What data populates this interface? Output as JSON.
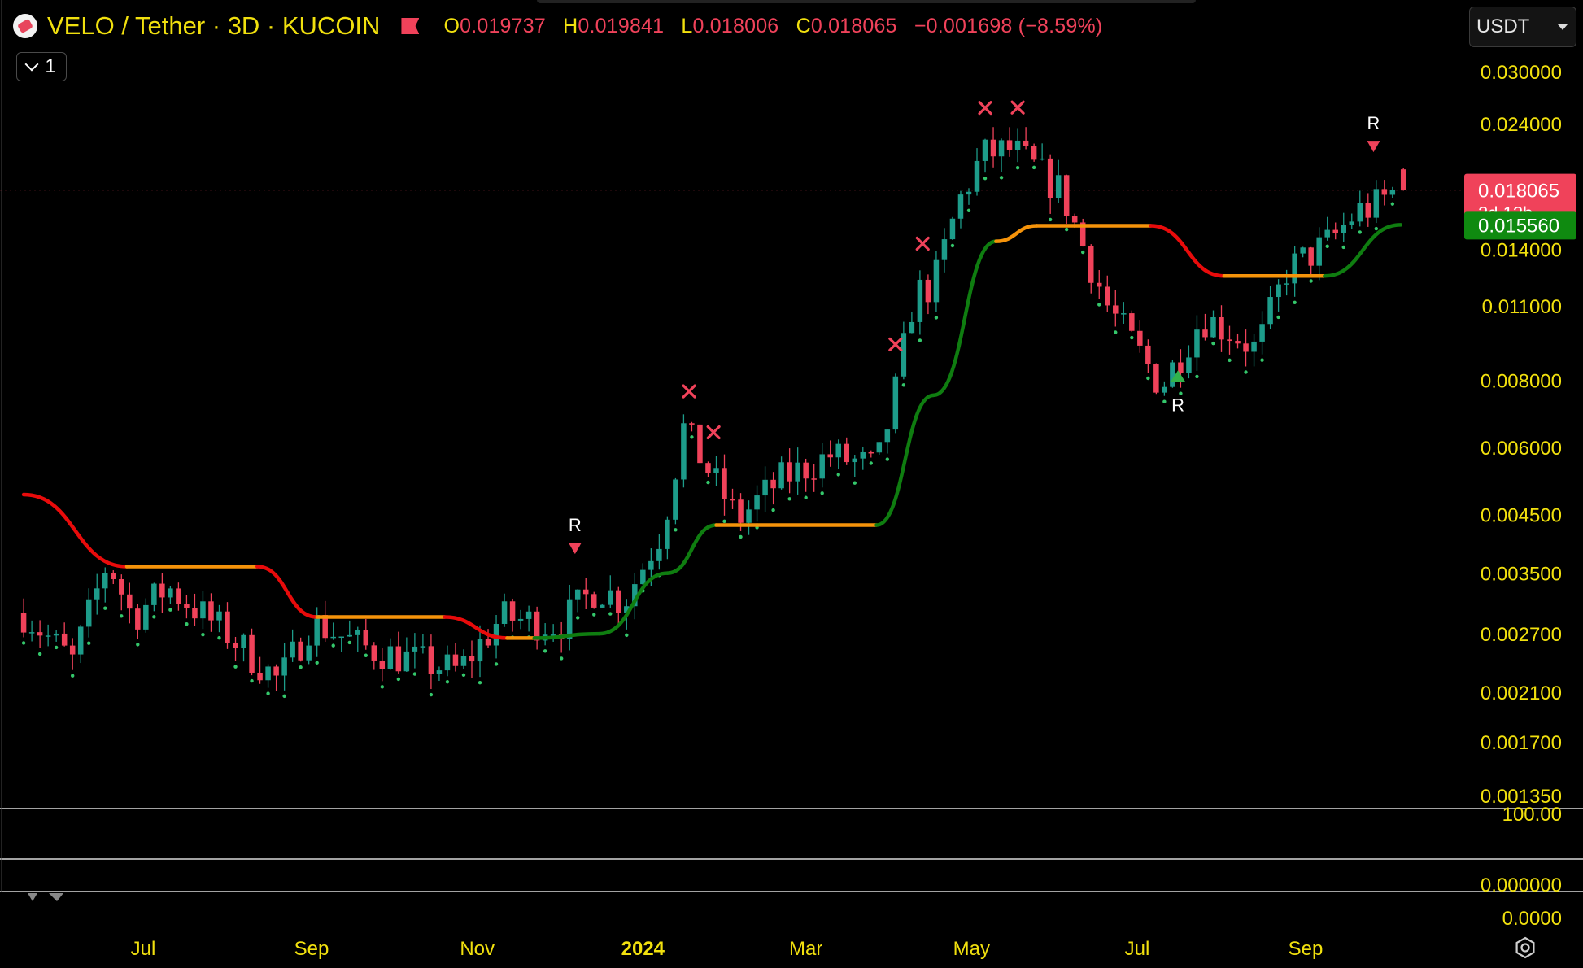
{
  "header": {
    "title": "VELO / Tether · 3D · KUCOIN",
    "open_label": "O",
    "open": "0.019737",
    "high_label": "H",
    "high": "0.019841",
    "low_label": "L",
    "low": "0.018006",
    "close_label": "C",
    "close": "0.018065",
    "change": "−0.001698 (−8.59%)",
    "icon": "exchange-flag-icon"
  },
  "indicator_toggle": {
    "label": "1"
  },
  "currency_select": {
    "selected": "USDT"
  },
  "colors": {
    "background": "#000000",
    "up_candle": "#1d9c8a",
    "down_candle": "#f0425a",
    "axis_text": "#f1e00e",
    "trail_bull": "#0f7d10",
    "trail_bear": "#e80b0b",
    "trail_flat": "#f5930a",
    "dots": "#34c76b"
  },
  "chart_data": {
    "type": "candlestick",
    "title": "VELO / Tether · 3D · KUCOIN",
    "y_scale": "log",
    "y_ticks": [
      "0.030000",
      "0.024000",
      "0.014000",
      "0.011000",
      "0.008000",
      "0.006000",
      "0.004500",
      "0.003500",
      "0.002700",
      "0.002100",
      "0.001700",
      "0.001350"
    ],
    "x_ticks": [
      {
        "label": "Jul",
        "date": "2023-07-01"
      },
      {
        "label": "Sep",
        "date": "2023-09-01"
      },
      {
        "label": "Nov",
        "date": "2023-11-01"
      },
      {
        "label": "2024",
        "date": "2024-01-01"
      },
      {
        "label": "Mar",
        "date": "2024-03-01"
      },
      {
        "label": "May",
        "date": "2024-05-01"
      },
      {
        "label": "Jul",
        "date": "2024-07-01"
      },
      {
        "label": "Sep",
        "date": "2024-09-01"
      }
    ],
    "price_series": [
      {
        "date": "2023-05-18",
        "price": 0.00295
      },
      {
        "date": "2023-06-05",
        "price": 0.0024
      },
      {
        "date": "2023-06-18",
        "price": 0.0037
      },
      {
        "date": "2023-06-27",
        "price": 0.0029
      },
      {
        "date": "2023-07-10",
        "price": 0.0033
      },
      {
        "date": "2023-08-01",
        "price": 0.0027
      },
      {
        "date": "2023-08-20",
        "price": 0.0022
      },
      {
        "date": "2023-09-01",
        "price": 0.00285
      },
      {
        "date": "2023-09-20",
        "price": 0.00255
      },
      {
        "date": "2023-10-10",
        "price": 0.0024
      },
      {
        "date": "2023-10-25",
        "price": 0.0023
      },
      {
        "date": "2023-11-10",
        "price": 0.0029
      },
      {
        "date": "2023-12-01",
        "price": 0.0028
      },
      {
        "date": "2023-12-15",
        "price": 0.0033
      },
      {
        "date": "2023-12-25",
        "price": 0.0031
      },
      {
        "date": "2024-01-08",
        "price": 0.0042
      },
      {
        "date": "2024-01-16",
        "price": 0.0065
      },
      {
        "date": "2024-02-05",
        "price": 0.0044
      },
      {
        "date": "2024-02-20",
        "price": 0.0052
      },
      {
        "date": "2024-03-10",
        "price": 0.0058
      },
      {
        "date": "2024-03-27",
        "price": 0.0055
      },
      {
        "date": "2024-04-02",
        "price": 0.0072
      },
      {
        "date": "2024-04-10",
        "price": 0.0116
      },
      {
        "date": "2024-04-17",
        "price": 0.012
      },
      {
        "date": "2024-04-26",
        "price": 0.017
      },
      {
        "date": "2024-05-05",
        "price": 0.021
      },
      {
        "date": "2024-05-16",
        "price": 0.0215
      },
      {
        "date": "2024-06-03",
        "price": 0.018
      },
      {
        "date": "2024-06-20",
        "price": 0.011
      },
      {
        "date": "2024-07-05",
        "price": 0.0085
      },
      {
        "date": "2024-07-10",
        "price": 0.0078
      },
      {
        "date": "2024-07-25",
        "price": 0.0105
      },
      {
        "date": "2024-08-05",
        "price": 0.0098
      },
      {
        "date": "2024-08-14",
        "price": 0.0091
      },
      {
        "date": "2024-08-25",
        "price": 0.0128
      },
      {
        "date": "2024-09-10",
        "price": 0.0145
      },
      {
        "date": "2024-09-20",
        "price": 0.0165
      },
      {
        "date": "2024-09-26",
        "price": 0.0168
      },
      {
        "date": "2024-10-04",
        "price": 0.01806
      }
    ],
    "trailing_stop": [
      {
        "date": "2023-05-18",
        "value": 0.0049,
        "state": "bear"
      },
      {
        "date": "2023-06-25",
        "value": 0.0036,
        "state": "bear"
      },
      {
        "date": "2023-08-12",
        "value": 0.0036,
        "state": "flat"
      },
      {
        "date": "2023-09-03",
        "value": 0.0029,
        "state": "bear"
      },
      {
        "date": "2023-10-20",
        "value": 0.0029,
        "state": "flat"
      },
      {
        "date": "2023-11-12",
        "value": 0.00265,
        "state": "bear"
      },
      {
        "date": "2023-11-22",
        "value": 0.00265,
        "state": "flat"
      },
      {
        "date": "2023-12-16",
        "value": 0.0027,
        "state": "bull"
      },
      {
        "date": "2024-01-10",
        "value": 0.0035,
        "state": "bull"
      },
      {
        "date": "2024-01-28",
        "value": 0.0043,
        "state": "bull"
      },
      {
        "date": "2024-02-12",
        "value": 0.0043,
        "state": "flat"
      },
      {
        "date": "2024-03-27",
        "value": 0.0043,
        "state": "flat"
      },
      {
        "date": "2024-04-17",
        "value": 0.0075,
        "state": "bull"
      },
      {
        "date": "2024-05-10",
        "value": 0.0145,
        "state": "bull"
      },
      {
        "date": "2024-05-25",
        "value": 0.0155,
        "state": "flat"
      },
      {
        "date": "2024-07-06",
        "value": 0.0155,
        "state": "flat"
      },
      {
        "date": "2024-08-02",
        "value": 0.0125,
        "state": "bear"
      },
      {
        "date": "2024-09-08",
        "value": 0.0125,
        "state": "flat"
      },
      {
        "date": "2024-10-06",
        "value": 0.01556,
        "state": "bull"
      }
    ],
    "markers": [
      {
        "date": "2023-12-07",
        "type": "R",
        "side": "sell"
      },
      {
        "date": "2024-01-18",
        "type": "x"
      },
      {
        "date": "2024-01-27",
        "type": "x"
      },
      {
        "date": "2024-04-03",
        "type": "x"
      },
      {
        "date": "2024-04-13",
        "type": "x"
      },
      {
        "date": "2024-05-06",
        "type": "x"
      },
      {
        "date": "2024-05-18",
        "type": "x"
      },
      {
        "date": "2024-07-16",
        "type": "R",
        "side": "buy"
      },
      {
        "date": "2024-09-26",
        "type": "R",
        "side": "sell"
      }
    ],
    "marker_text": "R",
    "last_price": {
      "value": "0.018065",
      "countdown": "2d 12h",
      "color": "#f0425a"
    },
    "stop_price": {
      "value": "0.015560",
      "color": "#0f8a10"
    },
    "panes": [
      {
        "tick": "100.00"
      },
      {
        "tick": "0.000000"
      },
      {
        "tick": "0.0000"
      }
    ]
  }
}
